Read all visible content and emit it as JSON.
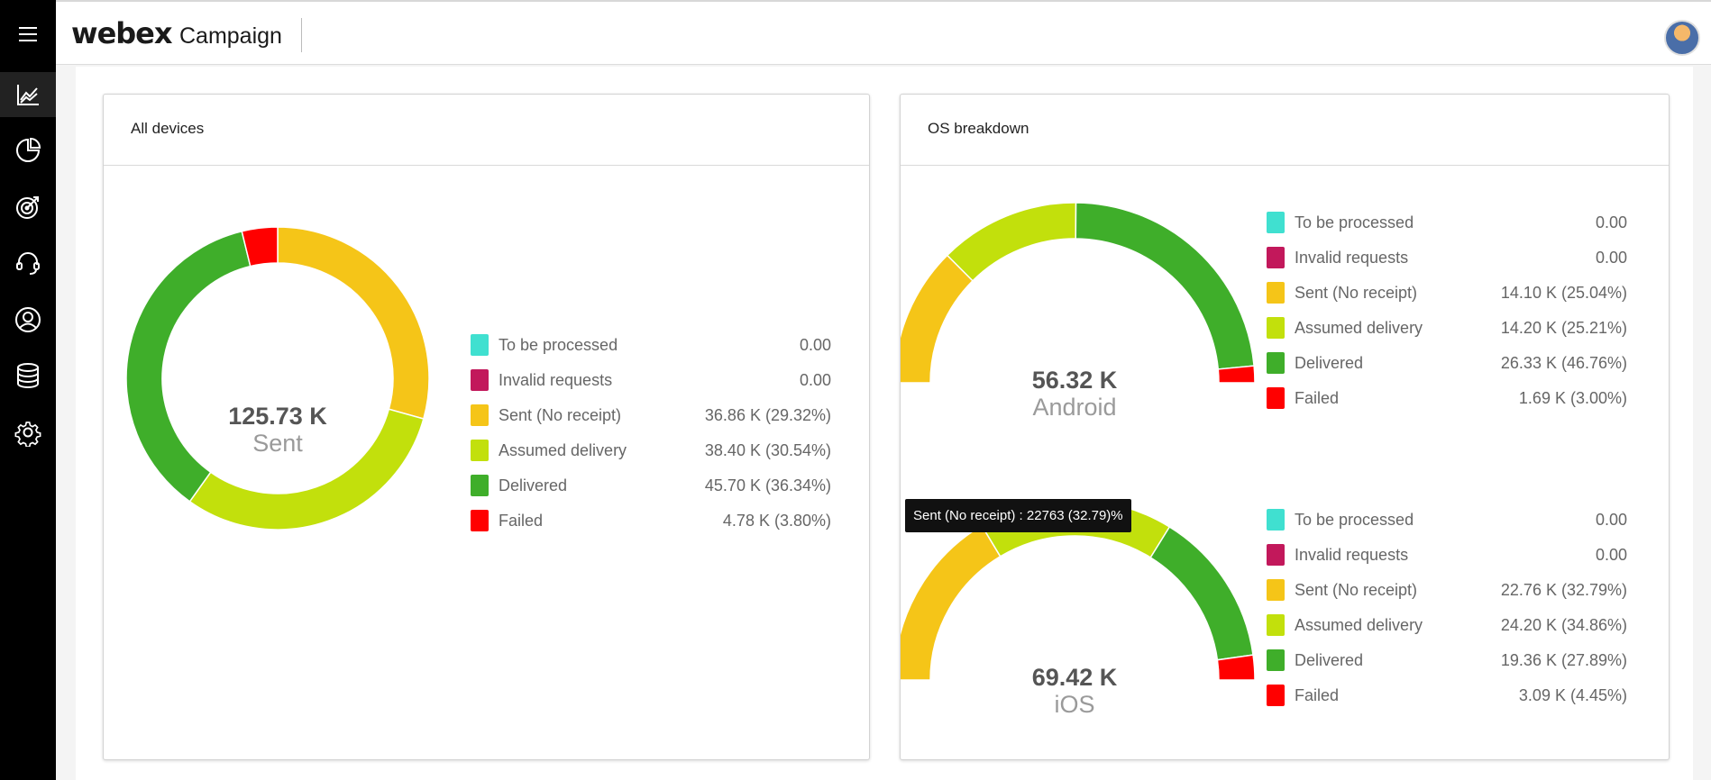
{
  "app": {
    "brand": "webex",
    "product": "Campaign"
  },
  "sidebar": {
    "items": [
      {
        "icon": "menu-icon"
      },
      {
        "icon": "line-chart-icon"
      },
      {
        "icon": "pie-chart-icon"
      },
      {
        "icon": "target-icon"
      },
      {
        "icon": "headset-icon"
      },
      {
        "icon": "user-icon"
      },
      {
        "icon": "database-icon"
      },
      {
        "icon": "gear-icon"
      }
    ]
  },
  "colors": {
    "to_be_processed": "#40e0d0",
    "invalid_requests": "#c2185b",
    "sent_no_receipt": "#f5c518",
    "assumed_delivery": "#c2e00c",
    "delivered": "#3fae2a",
    "failed": "#ff0000"
  },
  "legend_labels": [
    "To be processed",
    "Invalid requests",
    "Sent (No receipt)",
    "Assumed delivery",
    "Delivered",
    "Failed"
  ],
  "all_devices": {
    "title": "All devices",
    "center_value": "125.73 K",
    "center_label": "Sent",
    "legend_values": [
      "0.00",
      "0.00",
      "36.86 K (29.32%)",
      "38.40 K (30.54%)",
      "45.70 K (36.34%)",
      "4.78 K (3.80%)"
    ]
  },
  "os_breakdown": {
    "title": "OS breakdown",
    "android": {
      "center_value": "56.32 K",
      "center_label": "Android",
      "legend_values": [
        "0.00",
        "0.00",
        "14.10 K (25.04%)",
        "14.20 K (25.21%)",
        "26.33 K (46.76%)",
        "1.69 K (3.00%)"
      ]
    },
    "ios": {
      "center_value": "69.42 K",
      "center_label": "iOS",
      "legend_values": [
        "0.00",
        "0.00",
        "22.76 K (32.79%)",
        "24.20 K (34.86%)",
        "19.36 K (27.89%)",
        "3.09 K (4.45%)"
      ]
    }
  },
  "tooltip": {
    "text": "Sent (No receipt) : 22763 (32.79)%"
  },
  "chart_data": [
    {
      "type": "pie",
      "title": "All devices",
      "categories": [
        "To be processed",
        "Invalid requests",
        "Sent (No receipt)",
        "Assumed delivery",
        "Delivered",
        "Failed"
      ],
      "values": [
        0,
        0,
        36.86,
        38.4,
        45.7,
        4.78
      ],
      "percentages": [
        0,
        0,
        29.32,
        30.54,
        36.34,
        3.8
      ],
      "unit": "K",
      "donut": true
    },
    {
      "type": "pie",
      "title": "Android",
      "categories": [
        "To be processed",
        "Invalid requests",
        "Sent (No receipt)",
        "Assumed delivery",
        "Delivered",
        "Failed"
      ],
      "values": [
        0,
        0,
        14.1,
        14.2,
        26.33,
        1.69
      ],
      "percentages": [
        0,
        0,
        25.04,
        25.21,
        46.76,
        3.0
      ],
      "unit": "K",
      "half_donut": true
    },
    {
      "type": "pie",
      "title": "iOS",
      "categories": [
        "To be processed",
        "Invalid requests",
        "Sent (No receipt)",
        "Assumed delivery",
        "Delivered",
        "Failed"
      ],
      "values": [
        0,
        0,
        22.76,
        24.2,
        19.36,
        3.09
      ],
      "percentages": [
        0,
        0,
        32.79,
        34.86,
        27.89,
        4.45
      ],
      "unit": "K",
      "half_donut": true
    }
  ]
}
